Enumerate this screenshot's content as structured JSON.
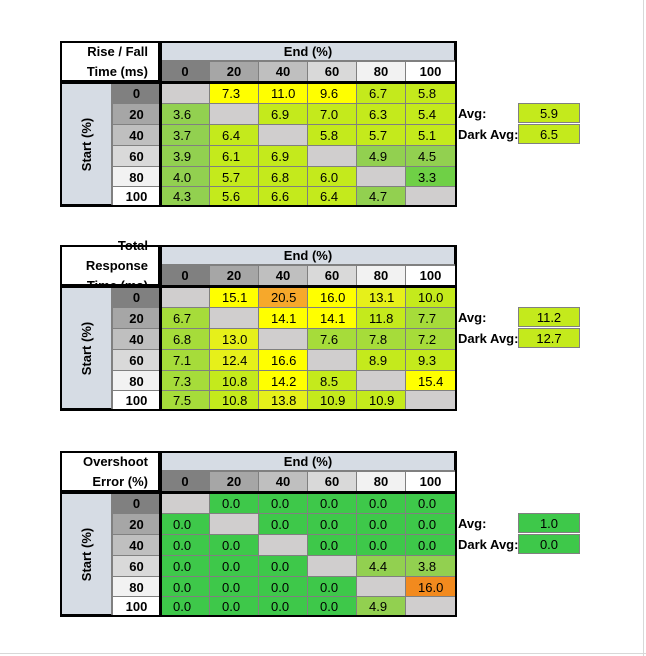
{
  "colors": {
    "header_fill": "#d6dce4",
    "diag_fill": "#d0cece",
    "head_0": "#808080",
    "head_20": "#a6a6a6",
    "head_40": "#bfbfbf",
    "head_60": "#d9d9d9",
    "head_80": "#f2f2f2",
    "head_100": "#ffffff"
  },
  "chart_data": [
    {
      "type": "table",
      "title_lines": [
        "Rise / Fall",
        "Time (ms)"
      ],
      "col_axis_label": "End (%)",
      "row_axis_label": "Start (%)",
      "col_labels": [
        "0",
        "20",
        "40",
        "60",
        "80",
        "100"
      ],
      "row_labels": [
        "0",
        "20",
        "40",
        "60",
        "80",
        "100"
      ],
      "values": [
        [
          null,
          "7.3",
          "11.0",
          "9.6",
          "6.7",
          "5.8"
        ],
        [
          "3.6",
          null,
          "6.9",
          "7.0",
          "6.3",
          "5.4"
        ],
        [
          "3.7",
          "6.4",
          null,
          "5.8",
          "5.7",
          "5.1"
        ],
        [
          "3.9",
          "6.1",
          "6.9",
          null,
          "4.9",
          "4.5"
        ],
        [
          "4.0",
          "5.7",
          "6.8",
          "6.0",
          null,
          "3.3"
        ],
        [
          "4.3",
          "5.6",
          "6.6",
          "6.4",
          "4.7",
          null
        ]
      ],
      "colors": [
        [
          null,
          "#ffff00",
          "#ffff00",
          "#ffff00",
          "#c4ea1c",
          "#c4ea1c"
        ],
        [
          "#92d050",
          null,
          "#c4ea1c",
          "#c4ea1c",
          "#c4ea1c",
          "#c4ea1c"
        ],
        [
          "#92d050",
          "#c4ea1c",
          null,
          "#c4ea1c",
          "#c4ea1c",
          "#c4ea1c"
        ],
        [
          "#92d050",
          "#c4ea1c",
          "#c4ea1c",
          null,
          "#92d050",
          "#92d050"
        ],
        [
          "#92d050",
          "#c4ea1c",
          "#c4ea1c",
          "#c4ea1c",
          null,
          "#6fd046"
        ],
        [
          "#92d050",
          "#c4ea1c",
          "#c4ea1c",
          "#c4ea1c",
          "#92d050",
          null
        ]
      ],
      "avg_label": "Avg:",
      "avg_value": "5.9",
      "avg_color": "#c4ea1c",
      "dark_avg_label": "Dark Avg:",
      "dark_avg_value": "6.5",
      "dark_avg_color": "#c4ea1c"
    },
    {
      "type": "table",
      "title_lines": [
        "Total Response",
        "Time (ms)"
      ],
      "col_axis_label": "End (%)",
      "row_axis_label": "Start (%)",
      "col_labels": [
        "0",
        "20",
        "40",
        "60",
        "80",
        "100"
      ],
      "row_labels": [
        "0",
        "20",
        "40",
        "60",
        "80",
        "100"
      ],
      "values": [
        [
          null,
          "15.1",
          "20.5",
          "16.0",
          "13.1",
          "10.0"
        ],
        [
          "6.7",
          null,
          "14.1",
          "14.1",
          "11.8",
          "7.7"
        ],
        [
          "6.8",
          "13.0",
          null,
          "7.6",
          "7.8",
          "7.2"
        ],
        [
          "7.1",
          "12.4",
          "16.6",
          null,
          "8.9",
          "9.3"
        ],
        [
          "7.3",
          "10.8",
          "14.2",
          "8.5",
          null,
          "15.4"
        ],
        [
          "7.5",
          "10.8",
          "13.8",
          "10.9",
          "10.9",
          null
        ]
      ],
      "colors": [
        [
          null,
          "#ffff00",
          "#f6a82b",
          "#ffff00",
          "#e6f01a",
          "#c4ea1c"
        ],
        [
          "#a6dc3a",
          null,
          "#ffff00",
          "#ffff00",
          "#c4ea1c",
          "#a6dc3a"
        ],
        [
          "#a6dc3a",
          "#e6f01a",
          null,
          "#a6dc3a",
          "#a6dc3a",
          "#a6dc3a"
        ],
        [
          "#a6dc3a",
          "#e6f01a",
          "#ffff00",
          null,
          "#c4ea1c",
          "#c4ea1c"
        ],
        [
          "#a6dc3a",
          "#c4ea1c",
          "#ffff00",
          "#c4ea1c",
          null,
          "#ffff00"
        ],
        [
          "#a6dc3a",
          "#c4ea1c",
          "#e6f01a",
          "#c4ea1c",
          "#c4ea1c",
          null
        ]
      ],
      "avg_label": "Avg:",
      "avg_value": "11.2",
      "avg_color": "#c4ea1c",
      "dark_avg_label": "Dark Avg:",
      "dark_avg_value": "12.7",
      "dark_avg_color": "#c4ea1c"
    },
    {
      "type": "table",
      "title_lines": [
        "Overshoot",
        "Error (%)"
      ],
      "col_axis_label": "End (%)",
      "row_axis_label": "Start (%)",
      "col_labels": [
        "0",
        "20",
        "40",
        "60",
        "80",
        "100"
      ],
      "row_labels": [
        "0",
        "20",
        "40",
        "60",
        "80",
        "100"
      ],
      "values": [
        [
          null,
          "0.0",
          "0.0",
          "0.0",
          "0.0",
          "0.0"
        ],
        [
          "0.0",
          null,
          "0.0",
          "0.0",
          "0.0",
          "0.0"
        ],
        [
          "0.0",
          "0.0",
          null,
          "0.0",
          "0.0",
          "0.0"
        ],
        [
          "0.0",
          "0.0",
          "0.0",
          null,
          "4.4",
          "3.8"
        ],
        [
          "0.0",
          "0.0",
          "0.0",
          "0.0",
          null,
          "16.0"
        ],
        [
          "0.0",
          "0.0",
          "0.0",
          "0.0",
          "4.9",
          null
        ]
      ],
      "colors": [
        [
          null,
          "#3ec84a",
          "#3ec84a",
          "#3ec84a",
          "#3ec84a",
          "#3ec84a"
        ],
        [
          "#3ec84a",
          null,
          "#3ec84a",
          "#3ec84a",
          "#3ec84a",
          "#3ec84a"
        ],
        [
          "#3ec84a",
          "#3ec84a",
          null,
          "#3ec84a",
          "#3ec84a",
          "#3ec84a"
        ],
        [
          "#3ec84a",
          "#3ec84a",
          "#3ec84a",
          null,
          "#92d050",
          "#92d050"
        ],
        [
          "#3ec84a",
          "#3ec84a",
          "#3ec84a",
          "#3ec84a",
          null,
          "#f28a1e"
        ],
        [
          "#3ec84a",
          "#3ec84a",
          "#3ec84a",
          "#3ec84a",
          "#92d050",
          null
        ]
      ],
      "avg_label": "Avg:",
      "avg_value": "1.0",
      "avg_color": "#3ec84a",
      "dark_avg_label": "Dark Avg:",
      "dark_avg_value": "0.0",
      "dark_avg_color": "#3ec84a"
    }
  ]
}
